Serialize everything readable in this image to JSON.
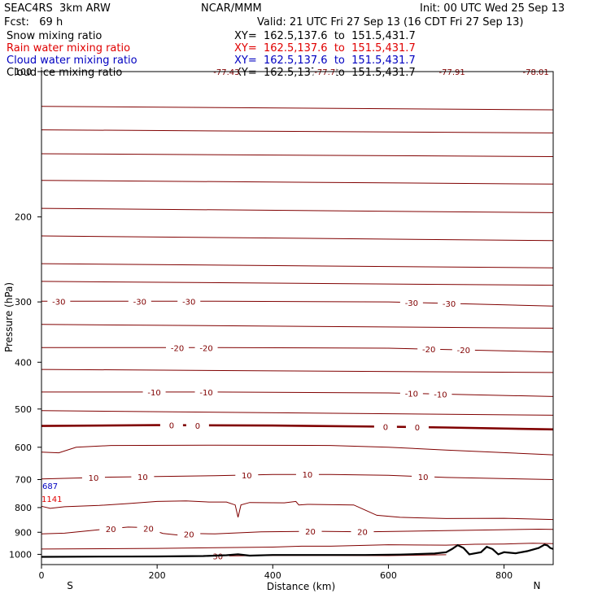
{
  "header": {
    "model": "SEAC4RS  3km ARW",
    "org": "NCAR/MMM",
    "init": "Init: 00 UTC Wed 25 Sep 13",
    "fcst": "Fcst:   69 h",
    "valid": "Valid: 21 UTC Fri 27 Sep 13 (16 CDT Fri 27 Sep 13)"
  },
  "fields": [
    {
      "name": "Snow mixing ratio",
      "xy": "XY=  162.5,137.6  to  151.5,431.7",
      "color": "#000000"
    },
    {
      "name": "Rain water mixing ratio",
      "xy": "XY=  162.5,137.6  to  151.5,431.7",
      "color": "#e00000"
    },
    {
      "name": "Cloud water mixing ratio",
      "xy": "XY=  162.5,137.6  to  151.5,431.7",
      "color": "#0000c0"
    },
    {
      "name": "Cloud ice mixing ratio",
      "xy": "XY=  162.5,137.6  to  151.5,431.7",
      "color": "#000000"
    }
  ],
  "side_labels": [
    {
      "text": "687",
      "color": "#0000c0"
    },
    {
      "text": "1141",
      "color": "#e00000"
    }
  ],
  "chart_data": {
    "type": "line",
    "xlabel": "Distance (km)",
    "ylabel": "Pressure (hPa)",
    "xlim": [
      0,
      885
    ],
    "ylim": [
      1050,
      100
    ],
    "y_scale": "log",
    "xticks": [
      0,
      200,
      400,
      600,
      800
    ],
    "yticks": [
      100,
      200,
      300,
      400,
      500,
      600,
      700,
      800,
      900,
      1000
    ],
    "x_end_labels": {
      "left": "S",
      "right": "N"
    },
    "line_color": "#800000",
    "zero_line_color": "#800000",
    "terrain_color": "#000000",
    "temperature_contours": [
      {
        "label": "-77.43",
        "pts": [
          [
            0,
            96
          ],
          [
            200,
            97
          ],
          [
            400,
            98
          ],
          [
            600,
            97
          ],
          [
            885,
            99
          ]
        ],
        "labels_at": [
          [
            320,
            "-77.43"
          ]
        ]
      },
      {
        "label": "-77.7",
        "pts": [
          [
            0,
            97
          ],
          [
            885,
            97
          ]
        ],
        "labels_at": [
          [
            490,
            "-77.7"
          ]
        ]
      },
      {
        "label": "-77.91",
        "pts": [
          [
            0,
            98
          ],
          [
            885,
            98
          ]
        ],
        "labels_at": [
          [
            710,
            "-77.91"
          ]
        ]
      },
      {
        "label": "-78.01",
        "pts": [
          [
            0,
            99
          ],
          [
            885,
            99
          ]
        ],
        "labels_at": [
          [
            855,
            "-78.01"
          ]
        ]
      },
      {
        "label": "",
        "pts": [
          [
            0,
            118
          ],
          [
            885,
            120
          ]
        ]
      },
      {
        "label": "",
        "pts": [
          [
            0,
            132
          ],
          [
            885,
            134
          ]
        ]
      },
      {
        "label": "",
        "pts": [
          [
            0,
            148
          ],
          [
            885,
            150
          ]
        ]
      },
      {
        "label": "",
        "pts": [
          [
            0,
            168
          ],
          [
            885,
            171
          ]
        ]
      },
      {
        "label": "",
        "pts": [
          [
            0,
            192
          ],
          [
            885,
            196
          ]
        ]
      },
      {
        "label": "",
        "pts": [
          [
            0,
            219
          ],
          [
            885,
            224
          ]
        ]
      },
      {
        "label": "",
        "pts": [
          [
            0,
            250
          ],
          [
            885,
            255
          ]
        ]
      },
      {
        "label": "",
        "pts": [
          [
            0,
            272
          ],
          [
            885,
            277
          ]
        ]
      },
      {
        "label": "-30",
        "pts": [
          [
            0,
            299
          ],
          [
            300,
            299
          ],
          [
            600,
            300
          ],
          [
            885,
            306
          ]
        ],
        "labels_at": [
          [
            30,
            "-30"
          ],
          [
            170,
            "-30"
          ],
          [
            255,
            "-30"
          ],
          [
            640,
            "-30"
          ],
          [
            705,
            "-30"
          ]
        ]
      },
      {
        "label": "",
        "pts": [
          [
            0,
            334
          ],
          [
            885,
            340
          ]
        ]
      },
      {
        "label": "-20",
        "pts": [
          [
            0,
            373
          ],
          [
            300,
            373
          ],
          [
            600,
            374
          ],
          [
            885,
            381
          ]
        ],
        "labels_at": [
          [
            235,
            "-20"
          ],
          [
            285,
            "-20"
          ],
          [
            670,
            "-20"
          ],
          [
            730,
            "-20"
          ]
        ]
      },
      {
        "label": "",
        "pts": [
          [
            0,
            414
          ],
          [
            885,
            420
          ]
        ]
      },
      {
        "label": "-10",
        "pts": [
          [
            0,
            461
          ],
          [
            300,
            461
          ],
          [
            600,
            463
          ],
          [
            885,
            471
          ]
        ],
        "labels_at": [
          [
            195,
            "-10"
          ],
          [
            285,
            "-10"
          ],
          [
            640,
            "-10"
          ],
          [
            690,
            "-10"
          ]
        ]
      },
      {
        "label": "",
        "pts": [
          [
            0,
            504
          ],
          [
            885,
            515
          ]
        ]
      },
      {
        "label": "0",
        "zero": true,
        "pts": [
          [
            0,
            542
          ],
          [
            200,
            540
          ],
          [
            400,
            541
          ],
          [
            600,
            544
          ],
          [
            700,
            546
          ],
          [
            885,
            551
          ]
        ],
        "labels_at": [
          [
            225,
            "0"
          ],
          [
            270,
            "0"
          ],
          [
            595,
            "0"
          ],
          [
            650,
            "0"
          ]
        ]
      },
      {
        "label": "",
        "pts": [
          [
            0,
            614
          ],
          [
            30,
            616
          ],
          [
            60,
            600
          ],
          [
            120,
            595
          ],
          [
            300,
            594
          ],
          [
            500,
            595
          ],
          [
            600,
            600
          ],
          [
            700,
            608
          ],
          [
            885,
            622
          ]
        ]
      },
      {
        "label": "10",
        "pts": [
          [
            0,
            698
          ],
          [
            40,
            696
          ],
          [
            120,
            692
          ],
          [
            200,
            690
          ],
          [
            300,
            687
          ],
          [
            400,
            683
          ],
          [
            500,
            683
          ],
          [
            600,
            686
          ],
          [
            700,
            693
          ],
          [
            885,
            700
          ]
        ],
        "labels_at": [
          [
            90,
            "10"
          ],
          [
            175,
            "10"
          ],
          [
            355,
            "10"
          ],
          [
            460,
            "10"
          ],
          [
            660,
            "10"
          ]
        ]
      },
      {
        "label": "",
        "pts": [
          [
            0,
            795
          ],
          [
            15,
            803
          ],
          [
            40,
            797
          ],
          [
            100,
            792
          ],
          [
            150,
            785
          ],
          [
            200,
            777
          ],
          [
            250,
            775
          ],
          [
            290,
            779
          ],
          [
            320,
            779
          ],
          [
            335,
            790
          ],
          [
            340,
            838
          ],
          [
            345,
            790
          ],
          [
            360,
            781
          ],
          [
            420,
            782
          ],
          [
            440,
            777
          ],
          [
            445,
            790
          ],
          [
            460,
            788
          ],
          [
            540,
            790
          ],
          [
            560,
            810
          ],
          [
            580,
            830
          ],
          [
            620,
            838
          ],
          [
            700,
            843
          ],
          [
            800,
            842
          ],
          [
            885,
            847
          ]
        ]
      },
      {
        "label": "20",
        "pts": [
          [
            0,
            907
          ],
          [
            40,
            904
          ],
          [
            100,
            889
          ],
          [
            150,
            878
          ],
          [
            180,
            880
          ],
          [
            210,
            905
          ],
          [
            240,
            913
          ],
          [
            260,
            905
          ],
          [
            300,
            907
          ],
          [
            380,
            898
          ],
          [
            480,
            896
          ],
          [
            560,
            898
          ],
          [
            700,
            893
          ],
          [
            860,
            887
          ],
          [
            885,
            888
          ]
        ],
        "labels_at": [
          [
            120,
            "20"
          ],
          [
            185,
            "20"
          ],
          [
            255,
            "20"
          ],
          [
            465,
            "20"
          ],
          [
            555,
            "20"
          ]
        ]
      },
      {
        "label": "",
        "pts": [
          [
            0,
            975
          ],
          [
            200,
            972
          ],
          [
            400,
            966
          ],
          [
            450,
            962
          ],
          [
            500,
            962
          ],
          [
            600,
            955
          ],
          [
            700,
            957
          ],
          [
            750,
            953
          ],
          [
            800,
            952
          ],
          [
            850,
            948
          ],
          [
            885,
            950
          ]
        ]
      },
      {
        "label": "30",
        "pts": [
          [
            300,
            1008
          ],
          [
            400,
            1005
          ],
          [
            500,
            1005
          ],
          [
            600,
            1006
          ],
          [
            700,
            1002
          ]
        ],
        "labels_at": [
          [
            305,
            "30"
          ]
        ]
      }
    ],
    "terrain": [
      [
        0,
        1012
      ],
      [
        100,
        1011
      ],
      [
        200,
        1010
      ],
      [
        280,
        1008
      ],
      [
        320,
        1004
      ],
      [
        340,
        1000
      ],
      [
        360,
        1006
      ],
      [
        400,
        1003
      ],
      [
        460,
        1003
      ],
      [
        500,
        1003
      ],
      [
        560,
        1003
      ],
      [
        620,
        1001
      ],
      [
        680,
        996
      ],
      [
        700,
        990
      ],
      [
        710,
        975
      ],
      [
        720,
        957
      ],
      [
        730,
        970
      ],
      [
        740,
        1000
      ],
      [
        760,
        990
      ],
      [
        770,
        965
      ],
      [
        780,
        975
      ],
      [
        790,
        1000
      ],
      [
        800,
        990
      ],
      [
        820,
        995
      ],
      [
        840,
        985
      ],
      [
        860,
        970
      ],
      [
        870,
        955
      ],
      [
        875,
        958
      ],
      [
        880,
        970
      ],
      [
        885,
        975
      ]
    ]
  }
}
